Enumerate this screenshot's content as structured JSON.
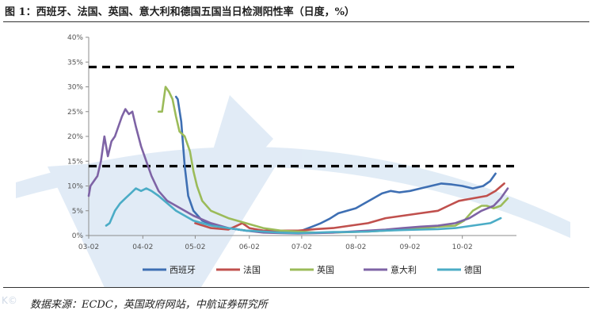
{
  "header": {
    "title": "图 1：西班牙、法国、英国、意大利和德国五国当日检测阳性率（日度，%）"
  },
  "footer": {
    "source": "数据来源：ECDC，英国政府网站，中航证券研究所"
  },
  "colors": {
    "spain": "#3e6fb3",
    "france": "#c0504d",
    "uk": "#9bbb59",
    "italy": "#7e63a5",
    "germany": "#4bacc6",
    "reference": "#000000",
    "axis": "#8c8c8c",
    "watermark": "#c9dcef"
  },
  "chart_data": {
    "type": "line",
    "title": "",
    "xlabel": "",
    "ylabel": "",
    "ylim": [
      0,
      40
    ],
    "y_ticks": [
      "0%",
      "5%",
      "10%",
      "15%",
      "20%",
      "25%",
      "30%",
      "35%",
      "40%"
    ],
    "x_ticks": [
      "03-02",
      "04-02",
      "05-02",
      "06-02",
      "07-02",
      "08-02",
      "09-02",
      "10-02"
    ],
    "x_tick_days": [
      0,
      31,
      61,
      92,
      122,
      153,
      184,
      214
    ],
    "xlim_days": [
      0,
      245
    ],
    "grid": false,
    "legend_position": "bottom",
    "reference_lines": [
      {
        "y": 34,
        "style": "dashed"
      },
      {
        "y": 14,
        "style": "dashed"
      }
    ],
    "series": [
      {
        "name": "西班牙",
        "color": "#3e6fb3",
        "points": [
          [
            50,
            28
          ],
          [
            51,
            27.5
          ],
          [
            53,
            23
          ],
          [
            55,
            14
          ],
          [
            57,
            8
          ],
          [
            60,
            5
          ],
          [
            65,
            3
          ],
          [
            72,
            2
          ],
          [
            80,
            1.5
          ],
          [
            90,
            1
          ],
          [
            100,
            0.8
          ],
          [
            110,
            0.8
          ],
          [
            118,
            0.9
          ],
          [
            122,
            1
          ],
          [
            128,
            1.8
          ],
          [
            133,
            2.5
          ],
          [
            138,
            3.4
          ],
          [
            143,
            4.5
          ],
          [
            148,
            5
          ],
          [
            153,
            5.5
          ],
          [
            158,
            6.5
          ],
          [
            163,
            7.5
          ],
          [
            168,
            8.5
          ],
          [
            173,
            9
          ],
          [
            178,
            8.7
          ],
          [
            184,
            9
          ],
          [
            190,
            9.5
          ],
          [
            196,
            10
          ],
          [
            202,
            10.5
          ],
          [
            208,
            10.3
          ],
          [
            214,
            10
          ],
          [
            220,
            9.5
          ],
          [
            226,
            10
          ],
          [
            230,
            11
          ],
          [
            233,
            12.5
          ]
        ]
      },
      {
        "name": "法国",
        "color": "#c0504d",
        "points": [
          [
            61,
            2.5
          ],
          [
            70,
            1.5
          ],
          [
            80,
            1.2
          ],
          [
            88,
            2.5
          ],
          [
            92,
            1.5
          ],
          [
            100,
            1
          ],
          [
            110,
            1
          ],
          [
            120,
            1
          ],
          [
            130,
            1.3
          ],
          [
            140,
            1.5
          ],
          [
            150,
            2
          ],
          [
            160,
            2.5
          ],
          [
            170,
            3.5
          ],
          [
            180,
            4
          ],
          [
            190,
            4.5
          ],
          [
            200,
            5
          ],
          [
            206,
            6
          ],
          [
            212,
            7
          ],
          [
            220,
            7.5
          ],
          [
            228,
            8
          ],
          [
            233,
            9
          ],
          [
            238,
            10.5
          ]
        ]
      },
      {
        "name": "英国",
        "color": "#9bbb59",
        "points": [
          [
            40,
            25
          ],
          [
            42,
            25
          ],
          [
            44,
            30
          ],
          [
            46,
            29
          ],
          [
            48,
            27.5
          ],
          [
            50,
            24
          ],
          [
            52,
            21
          ],
          [
            55,
            20
          ],
          [
            58,
            17
          ],
          [
            60,
            13
          ],
          [
            62,
            10
          ],
          [
            65,
            7
          ],
          [
            70,
            5
          ],
          [
            80,
            3.5
          ],
          [
            90,
            2.5
          ],
          [
            100,
            1.5
          ],
          [
            110,
            1
          ],
          [
            120,
            0.8
          ],
          [
            130,
            0.6
          ],
          [
            140,
            0.6
          ],
          [
            150,
            0.7
          ],
          [
            160,
            0.8
          ],
          [
            170,
            1
          ],
          [
            180,
            1.2
          ],
          [
            190,
            1.5
          ],
          [
            200,
            1.8
          ],
          [
            210,
            2
          ],
          [
            215,
            3
          ],
          [
            220,
            5
          ],
          [
            225,
            6
          ],
          [
            228,
            6
          ],
          [
            232,
            5.5
          ],
          [
            236,
            6
          ],
          [
            240,
            7.5
          ]
        ]
      },
      {
        "name": "意大利",
        "color": "#7e63a5",
        "points": [
          [
            0,
            8
          ],
          [
            1,
            10
          ],
          [
            3,
            11
          ],
          [
            5,
            12
          ],
          [
            7,
            15
          ],
          [
            9,
            20
          ],
          [
            11,
            16
          ],
          [
            13,
            19
          ],
          [
            15,
            20
          ],
          [
            17,
            22
          ],
          [
            19,
            24
          ],
          [
            21,
            25.5
          ],
          [
            23,
            24.5
          ],
          [
            25,
            25
          ],
          [
            27,
            22
          ],
          [
            30,
            18
          ],
          [
            33,
            15
          ],
          [
            36,
            12
          ],
          [
            40,
            9
          ],
          [
            45,
            7
          ],
          [
            50,
            6
          ],
          [
            60,
            4
          ],
          [
            70,
            2.5
          ],
          [
            80,
            1.5
          ],
          [
            90,
            1
          ],
          [
            100,
            0.6
          ],
          [
            110,
            0.5
          ],
          [
            120,
            0.4
          ],
          [
            130,
            0.5
          ],
          [
            140,
            0.6
          ],
          [
            150,
            0.8
          ],
          [
            160,
            1
          ],
          [
            170,
            1.2
          ],
          [
            180,
            1.5
          ],
          [
            190,
            1.8
          ],
          [
            200,
            2
          ],
          [
            210,
            2.5
          ],
          [
            218,
            3.5
          ],
          [
            225,
            5
          ],
          [
            232,
            6
          ],
          [
            236,
            7.5
          ],
          [
            240,
            9.5
          ]
        ]
      },
      {
        "name": "德国",
        "color": "#4bacc6",
        "points": [
          [
            10,
            2
          ],
          [
            12,
            2.5
          ],
          [
            15,
            5
          ],
          [
            18,
            6.5
          ],
          [
            21,
            7.5
          ],
          [
            24,
            8.5
          ],
          [
            27,
            9.5
          ],
          [
            30,
            9
          ],
          [
            33,
            9.5
          ],
          [
            36,
            9
          ],
          [
            40,
            8
          ],
          [
            45,
            6.5
          ],
          [
            50,
            5
          ],
          [
            55,
            4
          ],
          [
            60,
            3
          ],
          [
            65,
            2.5
          ],
          [
            70,
            2
          ],
          [
            80,
            1.5
          ],
          [
            90,
            1
          ],
          [
            100,
            0.8
          ],
          [
            110,
            0.6
          ],
          [
            120,
            0.5
          ],
          [
            130,
            0.6
          ],
          [
            140,
            0.7
          ],
          [
            150,
            0.7
          ],
          [
            160,
            0.8
          ],
          [
            170,
            1
          ],
          [
            180,
            1.1
          ],
          [
            190,
            1.2
          ],
          [
            200,
            1.3
          ],
          [
            210,
            1.5
          ],
          [
            220,
            2
          ],
          [
            230,
            2.5
          ],
          [
            236,
            3.5
          ]
        ]
      }
    ]
  }
}
